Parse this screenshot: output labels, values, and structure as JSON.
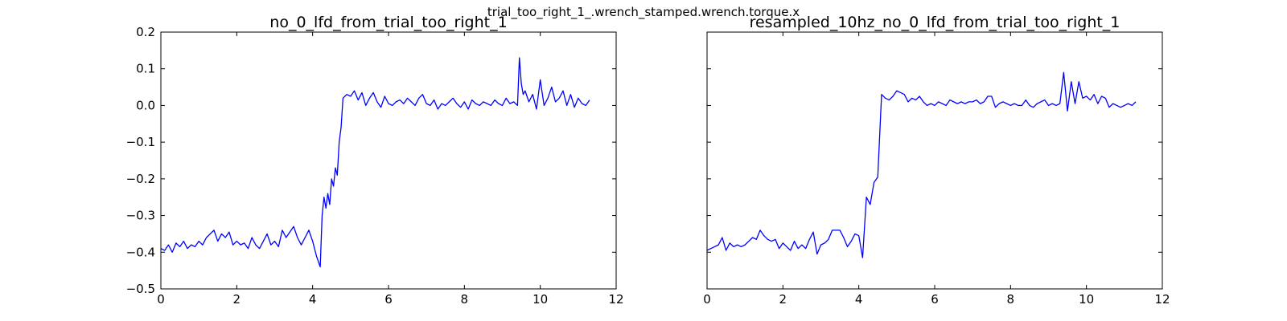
{
  "figure": {
    "suptitle": "trial_too_right_1_.wrench_stamped.wrench.torque.x"
  },
  "colors": {
    "line": "#0000ff",
    "axes": "#000000",
    "background": "#ffffff"
  },
  "chart_data": [
    {
      "type": "line",
      "title": "no_0_lfd_from_trial_too_right_1",
      "xlabel": "",
      "ylabel": "",
      "xlim": [
        0,
        12
      ],
      "ylim": [
        -0.5,
        0.2
      ],
      "xticks": [
        0,
        2,
        4,
        6,
        8,
        10,
        12
      ],
      "yticks": [
        -0.5,
        -0.4,
        -0.3,
        -0.2,
        -0.1,
        0.0,
        0.1,
        0.2
      ],
      "ytick_labels": [
        "−0.5",
        "−0.4",
        "−0.3",
        "−0.2",
        "−0.1",
        "0.0",
        "0.1",
        "0.2"
      ],
      "grid": false,
      "series": [
        {
          "x": [
            0,
            0.1,
            0.2,
            0.3,
            0.4,
            0.5,
            0.6,
            0.7,
            0.8,
            0.9,
            1.0,
            1.1,
            1.2,
            1.3,
            1.4,
            1.5,
            1.6,
            1.7,
            1.8,
            1.9,
            2.0,
            2.1,
            2.2,
            2.3,
            2.4,
            2.5,
            2.6,
            2.7,
            2.8,
            2.9,
            3.0,
            3.1,
            3.2,
            3.3,
            3.4,
            3.5,
            3.6,
            3.7,
            3.8,
            3.9,
            4.0,
            4.1,
            4.2,
            4.25,
            4.3,
            4.35,
            4.4,
            4.45,
            4.5,
            4.55,
            4.6,
            4.65,
            4.7,
            4.75,
            4.8,
            4.9,
            5.0,
            5.1,
            5.2,
            5.3,
            5.4,
            5.5,
            5.6,
            5.7,
            5.8,
            5.9,
            6.0,
            6.1,
            6.2,
            6.3,
            6.4,
            6.5,
            6.6,
            6.7,
            6.8,
            6.9,
            7.0,
            7.1,
            7.2,
            7.3,
            7.4,
            7.5,
            7.6,
            7.7,
            7.8,
            7.9,
            8.0,
            8.1,
            8.2,
            8.3,
            8.4,
            8.5,
            8.6,
            8.7,
            8.8,
            8.9,
            9.0,
            9.1,
            9.2,
            9.3,
            9.4,
            9.45,
            9.5,
            9.55,
            9.6,
            9.7,
            9.8,
            9.9,
            10.0,
            10.1,
            10.2,
            10.3,
            10.4,
            10.5,
            10.6,
            10.7,
            10.8,
            10.9,
            11.0,
            11.1,
            11.2,
            11.3
          ],
          "y": [
            -0.39,
            -0.395,
            -0.38,
            -0.4,
            -0.375,
            -0.385,
            -0.37,
            -0.39,
            -0.38,
            -0.385,
            -0.37,
            -0.38,
            -0.36,
            -0.35,
            -0.34,
            -0.37,
            -0.35,
            -0.36,
            -0.345,
            -0.38,
            -0.37,
            -0.38,
            -0.375,
            -0.39,
            -0.36,
            -0.38,
            -0.39,
            -0.37,
            -0.35,
            -0.38,
            -0.37,
            -0.385,
            -0.34,
            -0.36,
            -0.345,
            -0.33,
            -0.36,
            -0.38,
            -0.36,
            -0.34,
            -0.37,
            -0.41,
            -0.44,
            -0.3,
            -0.25,
            -0.28,
            -0.24,
            -0.27,
            -0.2,
            -0.22,
            -0.17,
            -0.19,
            -0.1,
            -0.06,
            0.02,
            0.03,
            0.025,
            0.04,
            0.015,
            0.035,
            0.0,
            0.02,
            0.035,
            0.01,
            -0.005,
            0.025,
            0.005,
            0.0,
            0.01,
            0.015,
            0.005,
            0.02,
            0.01,
            0.0,
            0.02,
            0.03,
            0.005,
            0.0,
            0.015,
            -0.01,
            0.005,
            0.0,
            0.01,
            0.02,
            0.005,
            -0.005,
            0.01,
            -0.01,
            0.015,
            0.005,
            0.0,
            0.01,
            0.005,
            0.0,
            0.015,
            0.005,
            0.0,
            0.02,
            0.005,
            0.01,
            0.0,
            0.13,
            0.06,
            0.03,
            0.04,
            0.01,
            0.03,
            -0.01,
            0.07,
            0.0,
            0.02,
            0.05,
            0.01,
            0.02,
            0.04,
            0.0,
            0.03,
            -0.005,
            0.02,
            0.005,
            0.0,
            0.015
          ]
        }
      ]
    },
    {
      "type": "line",
      "title": "resampled_10hz_no_0_lfd_from_trial_too_right_1",
      "xlabel": "",
      "ylabel": "",
      "xlim": [
        0,
        12
      ],
      "ylim": [
        -0.5,
        0.2
      ],
      "xticks": [
        0,
        2,
        4,
        6,
        8,
        10,
        12
      ],
      "yticks": [
        -0.5,
        -0.4,
        -0.3,
        -0.2,
        -0.1,
        0.0,
        0.1,
        0.2
      ],
      "ytick_labels": [],
      "grid": false,
      "series": [
        {
          "x": [
            0.0,
            0.1,
            0.2,
            0.3,
            0.4,
            0.5,
            0.6,
            0.7,
            0.8,
            0.9,
            1.0,
            1.1,
            1.2,
            1.3,
            1.4,
            1.5,
            1.6,
            1.7,
            1.8,
            1.9,
            2.0,
            2.1,
            2.2,
            2.3,
            2.4,
            2.5,
            2.6,
            2.7,
            2.8,
            2.9,
            3.0,
            3.1,
            3.2,
            3.3,
            3.4,
            3.5,
            3.6,
            3.7,
            3.8,
            3.9,
            4.0,
            4.1,
            4.2,
            4.3,
            4.4,
            4.5,
            4.6,
            4.7,
            4.8,
            4.9,
            5.0,
            5.1,
            5.2,
            5.3,
            5.4,
            5.5,
            5.6,
            5.7,
            5.8,
            5.9,
            6.0,
            6.1,
            6.2,
            6.3,
            6.4,
            6.5,
            6.6,
            6.7,
            6.8,
            6.9,
            7.0,
            7.1,
            7.2,
            7.3,
            7.4,
            7.5,
            7.6,
            7.7,
            7.8,
            7.9,
            8.0,
            8.1,
            8.2,
            8.3,
            8.4,
            8.5,
            8.6,
            8.7,
            8.8,
            8.9,
            9.0,
            9.1,
            9.2,
            9.3,
            9.4,
            9.5,
            9.6,
            9.7,
            9.8,
            9.9,
            10.0,
            10.1,
            10.2,
            10.3,
            10.4,
            10.5,
            10.6,
            10.7,
            10.8,
            10.9,
            11.0,
            11.1,
            11.2,
            11.3
          ],
          "y": [
            -0.395,
            -0.39,
            -0.385,
            -0.38,
            -0.36,
            -0.395,
            -0.375,
            -0.385,
            -0.38,
            -0.385,
            -0.38,
            -0.37,
            -0.36,
            -0.365,
            -0.34,
            -0.355,
            -0.365,
            -0.37,
            -0.365,
            -0.39,
            -0.375,
            -0.385,
            -0.395,
            -0.37,
            -0.39,
            -0.38,
            -0.39,
            -0.365,
            -0.345,
            -0.405,
            -0.38,
            -0.375,
            -0.365,
            -0.34,
            -0.34,
            -0.34,
            -0.36,
            -0.385,
            -0.37,
            -0.35,
            -0.355,
            -0.415,
            -0.25,
            -0.27,
            -0.21,
            -0.195,
            0.03,
            0.02,
            0.015,
            0.025,
            0.04,
            0.035,
            0.03,
            0.01,
            0.02,
            0.015,
            0.025,
            0.01,
            0.0,
            0.005,
            0.0,
            0.01,
            0.005,
            0.0,
            0.015,
            0.01,
            0.005,
            0.01,
            0.005,
            0.01,
            0.01,
            0.015,
            0.005,
            0.01,
            0.025,
            0.025,
            -0.005,
            0.005,
            0.01,
            0.005,
            0.0,
            0.005,
            0.0,
            0.0,
            0.015,
            0.0,
            -0.005,
            0.005,
            0.01,
            0.015,
            0.0,
            0.005,
            0.0,
            0.005,
            0.09,
            -0.015,
            0.065,
            0.005,
            0.065,
            0.02,
            0.025,
            0.015,
            0.03,
            0.005,
            0.025,
            0.02,
            -0.005,
            0.005,
            0.0,
            -0.005,
            0.0,
            0.005,
            0.0,
            0.01
          ]
        }
      ]
    }
  ]
}
